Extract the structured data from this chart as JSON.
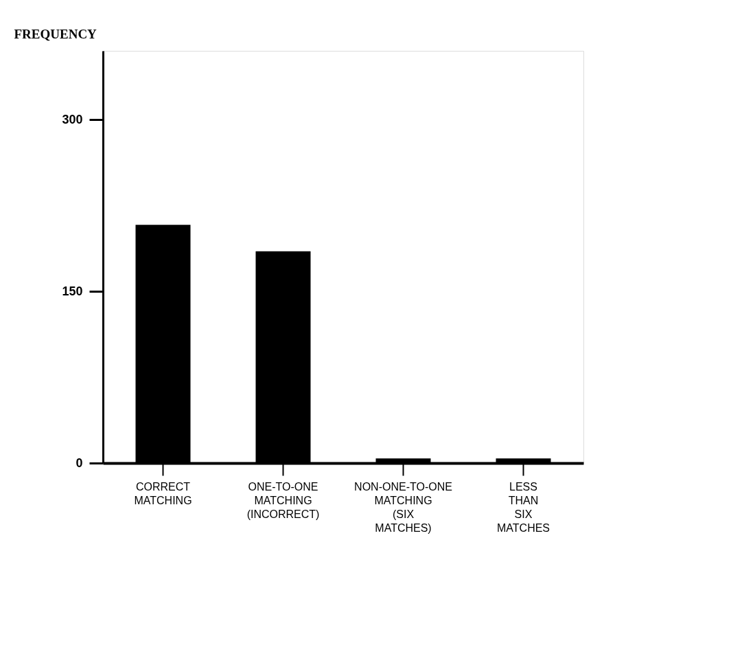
{
  "chart_data": {
    "type": "bar",
    "ylabel": "FREQUENCY",
    "categories": [
      "CORRECT MATCHING",
      "ONE-TO-ONE MATCHING (INCORRECT)",
      "NON-ONE-TO-ONE MATCHING (SIX MATCHES)",
      "LESS THAN SIX MATCHES"
    ],
    "values": [
      208,
      185,
      4,
      4
    ],
    "color": "#000000",
    "ylim": [
      0,
      360
    ],
    "yticks": [
      0,
      150,
      300
    ],
    "grid": false
  }
}
